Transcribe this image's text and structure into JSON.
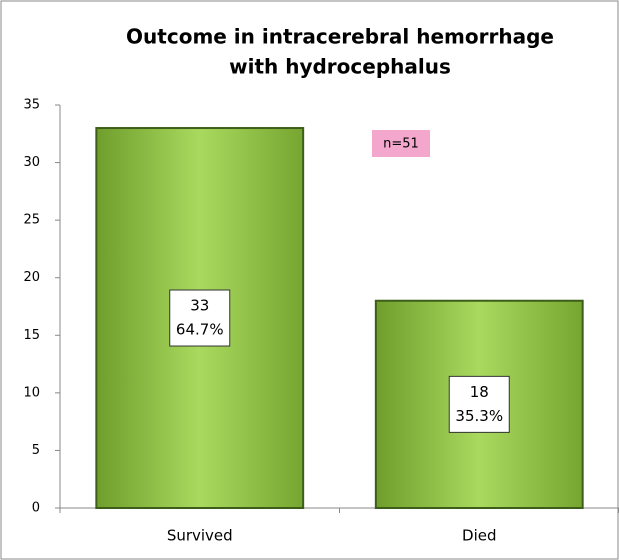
{
  "chart_data": {
    "type": "bar",
    "title": [
      "Outcome in intracerebral hemorrhage",
      "with hydrocephalus"
    ],
    "categories": [
      "Survived",
      "Died"
    ],
    "values": [
      33,
      18
    ],
    "percent_labels": [
      "64.7%",
      "35.3%"
    ],
    "annotation": "n=51",
    "color": "#8cc043",
    "ylim": [
      0,
      35
    ],
    "yticks": [
      0,
      5,
      10,
      15,
      20,
      25,
      30,
      35
    ],
    "grid": false
  }
}
